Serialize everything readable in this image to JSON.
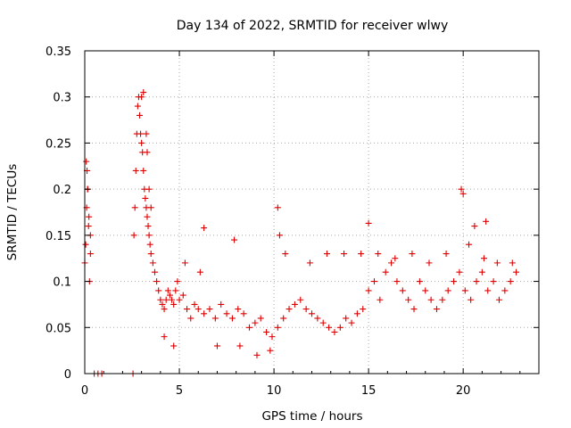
{
  "chart_data": {
    "type": "scatter",
    "title": "Day 134 of 2022, SRMTID for receiver wlwy",
    "xlabel": "GPS time / hours",
    "ylabel": "SRMTID / TECUs",
    "xlim": [
      0,
      24
    ],
    "ylim": [
      0,
      0.35
    ],
    "x_ticks": [
      0,
      5,
      10,
      15,
      20
    ],
    "x_tick_labels": [
      "0",
      "5",
      "10",
      "15",
      "20"
    ],
    "y_ticks": [
      0,
      0.05,
      0.1,
      0.15,
      0.2,
      0.25,
      0.3,
      0.35
    ],
    "y_tick_labels": [
      "0",
      "0.05",
      "0.1",
      "0.15",
      "0.2",
      "0.25",
      "0.3",
      "0.35"
    ],
    "grid": true,
    "marker": "plus",
    "color": "#e00000",
    "series": [
      {
        "name": "SRMTID",
        "x": [
          0.0,
          0.05,
          0.1,
          0.15,
          0.2,
          0.25,
          0.3,
          0.5,
          0.7,
          0.9,
          2.55,
          2.6,
          2.65,
          2.7,
          2.75,
          2.8,
          2.85,
          2.9,
          2.95,
          3.0,
          3.05,
          3.1,
          3.15,
          3.2,
          3.25,
          3.3,
          3.35,
          3.4,
          3.45,
          3.5,
          3.6,
          3.7,
          3.8,
          3.9,
          4.0,
          4.1,
          4.2,
          4.3,
          4.4,
          4.5,
          4.6,
          4.7,
          4.8,
          4.9,
          5.0,
          5.2,
          5.4,
          5.6,
          5.8,
          6.0,
          6.3,
          6.6,
          6.9,
          7.2,
          7.5,
          7.8,
          8.1,
          8.4,
          8.7,
          9.0,
          9.3,
          9.6,
          9.9,
          10.2,
          10.5,
          10.8,
          11.1,
          11.4,
          11.7,
          12.0,
          12.3,
          12.6,
          12.9,
          13.2,
          13.5,
          13.8,
          14.1,
          14.4,
          14.7,
          15.0,
          15.3,
          15.6,
          15.9,
          16.2,
          16.5,
          16.8,
          17.1,
          17.4,
          17.7,
          18.0,
          18.3,
          18.6,
          18.9,
          19.2,
          19.5,
          19.8,
          20.1,
          20.4,
          20.7,
          21.0,
          21.3,
          21.6,
          21.9,
          22.2,
          22.5,
          22.8,
          0.08,
          0.12,
          0.16,
          0.22,
          0.3,
          3.0,
          3.1,
          3.25,
          3.3,
          3.4,
          3.5,
          6.3,
          7.9,
          10.2,
          10.3,
          15.0,
          19.9,
          20.0,
          20.6,
          21.2,
          4.2,
          4.7,
          5.3,
          6.1,
          7.0,
          8.2,
          9.1,
          9.8,
          10.6,
          11.9,
          12.8,
          13.7,
          14.6,
          15.5,
          16.4,
          17.3,
          18.2,
          19.1,
          20.3,
          21.1,
          21.8,
          22.6
        ],
        "values": [
          0.12,
          0.14,
          0.18,
          0.2,
          0.16,
          0.1,
          0.13,
          0.0,
          0.0,
          0.0,
          0.0,
          0.15,
          0.18,
          0.22,
          0.26,
          0.29,
          0.3,
          0.28,
          0.26,
          0.25,
          0.24,
          0.22,
          0.2,
          0.19,
          0.18,
          0.17,
          0.16,
          0.15,
          0.14,
          0.13,
          0.12,
          0.11,
          0.1,
          0.09,
          0.08,
          0.075,
          0.07,
          0.08,
          0.09,
          0.085,
          0.08,
          0.075,
          0.09,
          0.1,
          0.08,
          0.085,
          0.07,
          0.06,
          0.075,
          0.07,
          0.065,
          0.07,
          0.06,
          0.075,
          0.065,
          0.06,
          0.07,
          0.065,
          0.05,
          0.055,
          0.06,
          0.045,
          0.04,
          0.05,
          0.06,
          0.07,
          0.075,
          0.08,
          0.07,
          0.065,
          0.06,
          0.055,
          0.05,
          0.045,
          0.05,
          0.06,
          0.055,
          0.065,
          0.07,
          0.09,
          0.1,
          0.08,
          0.11,
          0.12,
          0.1,
          0.09,
          0.08,
          0.07,
          0.1,
          0.09,
          0.08,
          0.07,
          0.08,
          0.09,
          0.1,
          0.11,
          0.09,
          0.08,
          0.1,
          0.11,
          0.09,
          0.1,
          0.08,
          0.09,
          0.1,
          0.11,
          0.23,
          0.22,
          0.2,
          0.17,
          0.15,
          0.3,
          0.305,
          0.26,
          0.24,
          0.2,
          0.18,
          0.158,
          0.145,
          0.18,
          0.15,
          0.163,
          0.2,
          0.195,
          0.16,
          0.165,
          0.04,
          0.03,
          0.12,
          0.11,
          0.03,
          0.03,
          0.02,
          0.025,
          0.13,
          0.12,
          0.13,
          0.13,
          0.13,
          0.13,
          0.125,
          0.13,
          0.12,
          0.13,
          0.14,
          0.125,
          0.12,
          0.12
        ]
      }
    ]
  }
}
